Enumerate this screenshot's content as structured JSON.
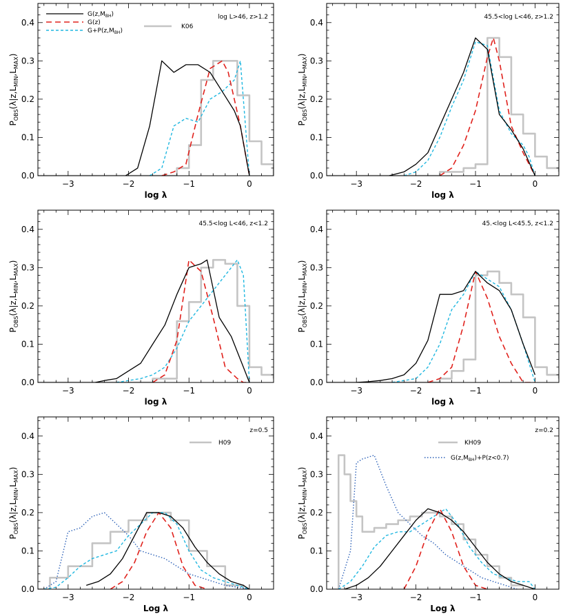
{
  "colors": {
    "black": "#000000",
    "red": "#e0201b",
    "cyan": "#1fb7e0",
    "gray": "#c4c4c4",
    "blue": "#2a5fb7"
  },
  "ylabel": {
    "main": "P",
    "sub1": "OBS",
    "mid": "(λ|z,L",
    "sub2": "MIN",
    "comma": ",L",
    "sub3": "MAX",
    "end": ")"
  },
  "chart_data": [
    {
      "type": "line",
      "annotation": "log L>46, z>1.2",
      "xlabel": "log λ",
      "xlim": [
        -3.5,
        0.4
      ],
      "ylim": [
        0,
        0.45
      ],
      "xticks": [
        -3,
        -2,
        -1,
        0
      ],
      "yticks": [
        0.0,
        0.1,
        0.2,
        0.3,
        0.4
      ],
      "legend": [
        {
          "label": "G(z,M",
          "sub": "BH",
          "tail": ")",
          "series": "black"
        },
        {
          "label": "G(z)",
          "sub": "",
          "tail": "",
          "series": "red"
        },
        {
          "label": "G+P(z,M",
          "sub": "BH",
          "tail": ")",
          "series": "cyan"
        },
        {
          "label": "K06",
          "sub": "",
          "tail": "",
          "series": "gray"
        }
      ],
      "series": [
        {
          "key": "black",
          "x": [
            -2.05,
            -1.85,
            -1.65,
            -1.45,
            -1.25,
            -1.05,
            -0.85,
            -0.65,
            -0.45,
            -0.25,
            -0.15,
            0.0
          ],
          "y": [
            0.0,
            0.02,
            0.13,
            0.3,
            0.27,
            0.29,
            0.29,
            0.27,
            0.22,
            0.17,
            0.13,
            0.0
          ]
        },
        {
          "key": "red",
          "x": [
            -1.45,
            -1.25,
            -1.05,
            -0.85,
            -0.65,
            -0.45,
            -0.35,
            -0.25,
            -0.15,
            0.0
          ],
          "y": [
            0.0,
            0.01,
            0.03,
            0.16,
            0.28,
            0.3,
            0.27,
            0.2,
            0.13,
            0.0
          ]
        },
        {
          "key": "cyan",
          "x": [
            -1.65,
            -1.45,
            -1.25,
            -1.05,
            -0.85,
            -0.65,
            -0.45,
            -0.25,
            -0.15,
            -0.05,
            0.0
          ],
          "y": [
            0.0,
            0.02,
            0.13,
            0.15,
            0.14,
            0.2,
            0.22,
            0.25,
            0.3,
            0.1,
            0.0
          ]
        },
        {
          "key": "gray",
          "step": true,
          "edges": [
            -3.5,
            -1.2,
            -1.0,
            -0.8,
            -0.6,
            -0.4,
            -0.2,
            0.0,
            0.2,
            0.4
          ],
          "y": [
            0.0,
            0.02,
            0.08,
            0.25,
            0.3,
            0.3,
            0.21,
            0.09,
            0.03,
            0.0
          ]
        }
      ]
    },
    {
      "type": "line",
      "annotation": "45.5<log L<46, z>1.2",
      "xlabel": "log λ",
      "xlim": [
        -3.5,
        0.4
      ],
      "ylim": [
        0,
        0.45
      ],
      "xticks": [
        -3,
        -2,
        -1,
        0
      ],
      "yticks": [
        0.0,
        0.1,
        0.2,
        0.3,
        0.4
      ],
      "legend": [],
      "series": [
        {
          "key": "black",
          "x": [
            -2.45,
            -2.2,
            -2.0,
            -1.8,
            -1.6,
            -1.4,
            -1.2,
            -1.0,
            -0.8,
            -0.6,
            -0.4,
            -0.2,
            0.0
          ],
          "y": [
            0.0,
            0.01,
            0.03,
            0.06,
            0.13,
            0.2,
            0.27,
            0.36,
            0.33,
            0.16,
            0.12,
            0.07,
            0.0
          ]
        },
        {
          "key": "red",
          "x": [
            -1.6,
            -1.4,
            -1.2,
            -1.0,
            -0.8,
            -0.7,
            -0.6,
            -0.4,
            -0.2,
            0.0
          ],
          "y": [
            0.0,
            0.02,
            0.08,
            0.17,
            0.31,
            0.36,
            0.3,
            0.13,
            0.06,
            0.0
          ]
        },
        {
          "key": "cyan",
          "x": [
            -2.2,
            -2.0,
            -1.8,
            -1.6,
            -1.4,
            -1.2,
            -1.0,
            -0.8,
            -0.6,
            -0.4,
            -0.2,
            -0.1,
            0.0
          ],
          "y": [
            0.0,
            0.01,
            0.04,
            0.1,
            0.18,
            0.25,
            0.35,
            0.34,
            0.17,
            0.11,
            0.08,
            0.05,
            0.0
          ]
        },
        {
          "key": "gray",
          "step": true,
          "edges": [
            -3.5,
            -1.6,
            -1.2,
            -1.0,
            -0.8,
            -0.6,
            -0.4,
            -0.2,
            0.0,
            0.2,
            0.4
          ],
          "y": [
            0.0,
            0.01,
            0.02,
            0.03,
            0.36,
            0.31,
            0.16,
            0.11,
            0.05,
            0.02,
            0.01
          ]
        }
      ]
    },
    {
      "type": "line",
      "annotation": "45.5<log L<46, z<1.2",
      "xlabel": "log λ",
      "xlim": [
        -3.5,
        0.4
      ],
      "ylim": [
        0,
        0.45
      ],
      "xticks": [
        -3,
        -2,
        -1,
        0
      ],
      "yticks": [
        0.0,
        0.1,
        0.2,
        0.3,
        0.4
      ],
      "legend": [],
      "series": [
        {
          "key": "black",
          "x": [
            -2.55,
            -2.4,
            -2.2,
            -2.0,
            -1.8,
            -1.6,
            -1.4,
            -1.2,
            -1.0,
            -0.8,
            -0.7,
            -0.5,
            -0.3,
            -0.1,
            0.0
          ],
          "y": [
            0.0,
            0.005,
            0.01,
            0.03,
            0.05,
            0.1,
            0.15,
            0.23,
            0.3,
            0.31,
            0.32,
            0.17,
            0.12,
            0.04,
            0.0
          ]
        },
        {
          "key": "red",
          "x": [
            -1.6,
            -1.4,
            -1.2,
            -1.0,
            -0.8,
            -0.6,
            -0.4,
            -0.2,
            -0.1,
            0.0
          ],
          "y": [
            0.0,
            0.02,
            0.11,
            0.32,
            0.29,
            0.17,
            0.04,
            0.01,
            0.0,
            0.0
          ]
        },
        {
          "key": "cyan",
          "x": [
            -2.2,
            -2.0,
            -1.8,
            -1.6,
            -1.4,
            -1.2,
            -1.0,
            -0.8,
            -0.6,
            -0.4,
            -0.2,
            -0.1,
            0.0
          ],
          "y": [
            0.0,
            0.005,
            0.01,
            0.02,
            0.04,
            0.09,
            0.16,
            0.2,
            0.24,
            0.28,
            0.32,
            0.28,
            0.0
          ]
        },
        {
          "key": "gray",
          "step": true,
          "edges": [
            -3.5,
            -1.6,
            -1.2,
            -1.0,
            -0.8,
            -0.6,
            -0.4,
            -0.2,
            0.0,
            0.2,
            0.4
          ],
          "y": [
            0.0,
            0.01,
            0.16,
            0.21,
            0.3,
            0.32,
            0.31,
            0.2,
            0.04,
            0.02,
            0.01
          ]
        }
      ]
    },
    {
      "type": "line",
      "annotation": "45.<log L<45.5, z<1.2",
      "xlabel": "log λ",
      "xlim": [
        -3.5,
        0.4
      ],
      "ylim": [
        0,
        0.45
      ],
      "xticks": [
        -3,
        -2,
        -1,
        0
      ],
      "yticks": [
        0.0,
        0.1,
        0.2,
        0.3,
        0.4
      ],
      "legend": [],
      "series": [
        {
          "key": "black",
          "x": [
            -3.0,
            -2.8,
            -2.6,
            -2.4,
            -2.2,
            -2.0,
            -1.8,
            -1.6,
            -1.4,
            -1.2,
            -1.0,
            -0.8,
            -0.6,
            -0.4,
            -0.2,
            0.0
          ],
          "y": [
            0.0,
            0.002,
            0.005,
            0.01,
            0.02,
            0.05,
            0.11,
            0.23,
            0.23,
            0.24,
            0.29,
            0.26,
            0.24,
            0.19,
            0.1,
            0.02
          ]
        },
        {
          "key": "red",
          "x": [
            -1.8,
            -1.6,
            -1.4,
            -1.2,
            -1.0,
            -0.8,
            -0.6,
            -0.4,
            -0.2,
            0.0
          ],
          "y": [
            0.0,
            0.01,
            0.04,
            0.15,
            0.29,
            0.22,
            0.12,
            0.05,
            0.0,
            0.0
          ]
        },
        {
          "key": "cyan",
          "x": [
            -2.4,
            -2.2,
            -2.0,
            -1.8,
            -1.6,
            -1.4,
            -1.2,
            -1.0,
            -0.8,
            -0.6,
            -0.4,
            -0.2,
            -0.1,
            0.0
          ],
          "y": [
            0.0,
            0.005,
            0.01,
            0.04,
            0.1,
            0.19,
            0.23,
            0.29,
            0.27,
            0.25,
            0.19,
            0.1,
            0.05,
            0.0
          ]
        },
        {
          "key": "gray",
          "step": true,
          "edges": [
            -3.5,
            -1.6,
            -1.4,
            -1.2,
            -1.0,
            -0.8,
            -0.6,
            -0.4,
            -0.2,
            0.0,
            0.2,
            0.4
          ],
          "y": [
            0.0,
            0.01,
            0.03,
            0.06,
            0.28,
            0.29,
            0.26,
            0.23,
            0.17,
            0.04,
            0.02,
            0.01
          ]
        }
      ]
    },
    {
      "type": "line",
      "annotation": "z=0.5",
      "xlabel": "Log λ",
      "xlim": [
        -3.5,
        0.4
      ],
      "ylim": [
        0,
        0.45
      ],
      "xticks": [
        -3,
        -2,
        -1,
        0
      ],
      "yticks": [
        0.0,
        0.1,
        0.2,
        0.3,
        0.4
      ],
      "legend": [
        {
          "label": "H09",
          "sub": "",
          "tail": "",
          "series": "gray"
        }
      ],
      "series": [
        {
          "key": "black",
          "x": [
            -2.7,
            -2.5,
            -2.3,
            -2.1,
            -1.9,
            -1.7,
            -1.5,
            -1.3,
            -1.1,
            -0.9,
            -0.7,
            -0.5,
            -0.3,
            -0.1,
            0.0
          ],
          "y": [
            0.01,
            0.02,
            0.04,
            0.08,
            0.14,
            0.2,
            0.2,
            0.19,
            0.16,
            0.11,
            0.07,
            0.04,
            0.02,
            0.01,
            0.0
          ]
        },
        {
          "key": "red",
          "x": [
            -2.3,
            -2.1,
            -1.9,
            -1.7,
            -1.5,
            -1.3,
            -1.1,
            -0.9,
            -0.7
          ],
          "y": [
            0.0,
            0.02,
            0.07,
            0.15,
            0.2,
            0.16,
            0.06,
            0.01,
            0.0
          ]
        },
        {
          "key": "cyan",
          "x": [
            -3.4,
            -3.2,
            -3.0,
            -2.8,
            -2.6,
            -2.4,
            -2.2,
            -2.0,
            -1.8,
            -1.6,
            -1.4,
            -1.2,
            -1.0,
            -0.8,
            -0.6,
            -0.4,
            -0.2,
            0.0
          ],
          "y": [
            0.0,
            0.005,
            0.03,
            0.06,
            0.08,
            0.09,
            0.1,
            0.14,
            0.17,
            0.2,
            0.2,
            0.17,
            0.1,
            0.05,
            0.03,
            0.02,
            0.01,
            0.0
          ]
        },
        {
          "key": "blue",
          "x": [
            -3.4,
            -3.2,
            -3.0,
            -2.8,
            -2.6,
            -2.4,
            -2.2,
            -2.0,
            -1.8,
            -1.6,
            -1.4,
            -1.2,
            -1.0,
            -0.8,
            -0.6,
            -0.4,
            -0.2,
            0.0
          ],
          "y": [
            0.0,
            0.02,
            0.15,
            0.16,
            0.19,
            0.2,
            0.17,
            0.14,
            0.1,
            0.09,
            0.08,
            0.06,
            0.04,
            0.03,
            0.02,
            0.01,
            0.005,
            0.0
          ]
        },
        {
          "key": "gray",
          "step": true,
          "edges": [
            -3.5,
            -3.3,
            -3.0,
            -2.6,
            -2.3,
            -2.0,
            -1.7,
            -1.3,
            -1.0,
            -0.7,
            -0.4,
            -0.1,
            0.0
          ],
          "y": [
            0.0,
            0.03,
            0.06,
            0.12,
            0.15,
            0.18,
            0.2,
            0.18,
            0.1,
            0.06,
            0.01,
            0.0
          ]
        }
      ]
    },
    {
      "type": "line",
      "annotation": "z=0.2",
      "xlabel": "Log λ",
      "xlim": [
        -3.5,
        0.4
      ],
      "ylim": [
        0,
        0.45
      ],
      "xticks": [
        -3,
        -2,
        -1,
        0
      ],
      "yticks": [
        0.0,
        0.1,
        0.2,
        0.3,
        0.4
      ],
      "legend": [
        {
          "label": "KH09",
          "sub": "",
          "tail": "",
          "series": "gray"
        },
        {
          "label": "G(z,M",
          "sub": "BH",
          "tail": ")+P(z<0.7)",
          "series": "blue"
        }
      ],
      "series": [
        {
          "key": "black",
          "x": [
            -3.2,
            -3.0,
            -2.8,
            -2.6,
            -2.4,
            -2.2,
            -2.0,
            -1.8,
            -1.6,
            -1.4,
            -1.2,
            -1.0,
            -0.8,
            -0.6,
            -0.4,
            -0.2,
            0.0
          ],
          "y": [
            0.0,
            0.01,
            0.03,
            0.06,
            0.1,
            0.14,
            0.18,
            0.21,
            0.2,
            0.18,
            0.15,
            0.11,
            0.07,
            0.04,
            0.02,
            0.01,
            0.0
          ]
        },
        {
          "key": "red",
          "x": [
            -2.2,
            -2.0,
            -1.8,
            -1.6,
            -1.4,
            -1.2,
            -1.0,
            -0.8
          ],
          "y": [
            0.0,
            0.06,
            0.15,
            0.21,
            0.15,
            0.06,
            0.01,
            0.0
          ]
        },
        {
          "key": "cyan",
          "x": [
            -3.3,
            -3.1,
            -2.9,
            -2.7,
            -2.5,
            -2.3,
            -2.1,
            -1.9,
            -1.7,
            -1.5,
            -1.3,
            -1.1,
            -0.9,
            -0.7,
            -0.5,
            -0.3,
            -0.1,
            0.0
          ],
          "y": [
            0.0,
            0.02,
            0.06,
            0.11,
            0.14,
            0.15,
            0.15,
            0.17,
            0.19,
            0.21,
            0.17,
            0.11,
            0.07,
            0.04,
            0.03,
            0.02,
            0.02,
            0.0
          ]
        },
        {
          "key": "blue",
          "x": [
            -3.3,
            -3.1,
            -3.0,
            -2.9,
            -2.7,
            -2.5,
            -2.3,
            -2.1,
            -1.9,
            -1.7,
            -1.5,
            -1.3,
            -1.1,
            -0.9,
            -0.7,
            -0.5,
            -0.3
          ],
          "y": [
            0.0,
            0.1,
            0.33,
            0.34,
            0.35,
            0.27,
            0.2,
            0.17,
            0.14,
            0.12,
            0.09,
            0.07,
            0.05,
            0.03,
            0.02,
            0.01,
            0.0
          ]
        },
        {
          "key": "gray",
          "step": true,
          "edges": [
            -3.4,
            -3.3,
            -3.2,
            -3.1,
            -3.0,
            -2.9,
            -2.8,
            -2.7,
            -2.5,
            -2.3,
            -2.1,
            -1.9,
            -1.8,
            -1.6,
            -1.4,
            -1.2,
            -1.0,
            -0.8,
            -0.6,
            -0.4,
            -0.2
          ],
          "y": [
            0.0,
            0.35,
            0.3,
            0.23,
            0.19,
            0.15,
            0.15,
            0.16,
            0.17,
            0.18,
            0.19,
            0.2,
            0.2,
            0.19,
            0.17,
            0.13,
            0.09,
            0.06,
            0.03,
            0.01
          ]
        }
      ]
    }
  ]
}
